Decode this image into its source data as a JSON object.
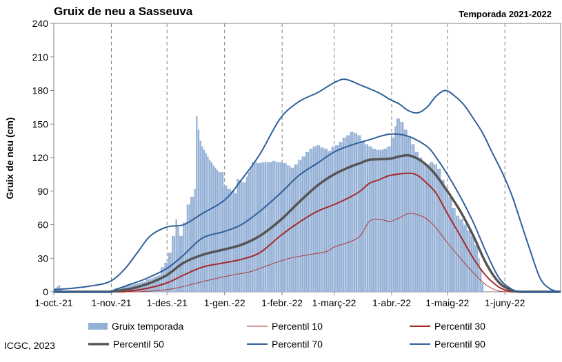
{
  "header": {
    "title": "Gruix de neu a Sasseuva",
    "season": "Temporada 2021-2022",
    "credit": "ICGC, 2023"
  },
  "chart_data": {
    "type": "bar",
    "ylabel": "Gruix de neu (cm)",
    "xlabel": "",
    "ylim": [
      0,
      240
    ],
    "yticks": [
      0,
      30,
      60,
      90,
      120,
      150,
      180,
      210,
      240
    ],
    "xrange": [
      "2021-10-01",
      "2022-07-01"
    ],
    "xticks": [
      {
        "date": "2021-10-01",
        "label": "1-oct.-21"
      },
      {
        "date": "2021-11-01",
        "label": "1-nov.-21"
      },
      {
        "date": "2021-12-01",
        "label": "1-des.-21"
      },
      {
        "date": "2022-01-01",
        "label": "1-gen.-22"
      },
      {
        "date": "2022-02-01",
        "label": "1-febr.-22"
      },
      {
        "date": "2022-03-01",
        "label": "1-març-22"
      },
      {
        "date": "2022-04-01",
        "label": "1-abr.-22"
      },
      {
        "date": "2022-05-01",
        "label": "1-maig-22"
      },
      {
        "date": "2022-06-01",
        "label": "1-juny-22"
      }
    ],
    "grid": "vertical dashed at month starts",
    "legend_position": "bottom",
    "colors": {
      "bars": "#94b0d6",
      "p10": "#b03a3a",
      "p30": "#a52a2a",
      "p50": "#555555",
      "p70": "#2f5f9a",
      "p90": "#2f5f9a"
    },
    "bar_series": {
      "name": "Gruix temporada",
      "points": [
        [
          "2021-10-01",
          2
        ],
        [
          "2021-10-04",
          6
        ],
        [
          "2021-10-05",
          2
        ],
        [
          "2021-10-06",
          0
        ],
        [
          "2021-11-02",
          0
        ],
        [
          "2021-11-03",
          3
        ],
        [
          "2021-11-06",
          4
        ],
        [
          "2021-11-08",
          5
        ],
        [
          "2021-11-10",
          6
        ],
        [
          "2021-11-14",
          7
        ],
        [
          "2021-11-18",
          9
        ],
        [
          "2021-11-20",
          11
        ],
        [
          "2021-11-22",
          12
        ],
        [
          "2021-11-24",
          13
        ],
        [
          "2021-11-27",
          15
        ],
        [
          "2021-11-28",
          22
        ],
        [
          "2021-11-30",
          26
        ],
        [
          "2021-12-02",
          35
        ],
        [
          "2021-12-04",
          50
        ],
        [
          "2021-12-06",
          65
        ],
        [
          "2021-12-07",
          58
        ],
        [
          "2021-12-08",
          50
        ],
        [
          "2021-12-10",
          62
        ],
        [
          "2021-12-12",
          78
        ],
        [
          "2021-12-14",
          85
        ],
        [
          "2021-12-16",
          92
        ],
        [
          "2021-12-17",
          157
        ],
        [
          "2021-12-18",
          145
        ],
        [
          "2021-12-19",
          135
        ],
        [
          "2021-12-20",
          130
        ],
        [
          "2021-12-21",
          127
        ],
        [
          "2021-12-22",
          124
        ],
        [
          "2021-12-23",
          121
        ],
        [
          "2021-12-24",
          118
        ],
        [
          "2021-12-25",
          116
        ],
        [
          "2021-12-26",
          113
        ],
        [
          "2021-12-27",
          111
        ],
        [
          "2021-12-28",
          109
        ],
        [
          "2021-12-29",
          107
        ],
        [
          "2021-12-30",
          107
        ],
        [
          "2021-12-31",
          107
        ],
        [
          "2022-01-01",
          95
        ],
        [
          "2022-01-03",
          92
        ],
        [
          "2022-01-05",
          90
        ],
        [
          "2022-01-07",
          88
        ],
        [
          "2022-01-08",
          101
        ],
        [
          "2022-01-09",
          100
        ],
        [
          "2022-01-10",
          99
        ],
        [
          "2022-01-11",
          98
        ],
        [
          "2022-01-12",
          98
        ],
        [
          "2022-01-13",
          103
        ],
        [
          "2022-01-14",
          107
        ],
        [
          "2022-01-15",
          112
        ],
        [
          "2022-01-16",
          116
        ],
        [
          "2022-01-17",
          116
        ],
        [
          "2022-01-19",
          115
        ],
        [
          "2022-01-21",
          116
        ],
        [
          "2022-01-23",
          116
        ],
        [
          "2022-01-25",
          116
        ],
        [
          "2022-01-27",
          117
        ],
        [
          "2022-01-29",
          116
        ],
        [
          "2022-01-31",
          116
        ],
        [
          "2022-02-02",
          115
        ],
        [
          "2022-02-04",
          113
        ],
        [
          "2022-02-06",
          111
        ],
        [
          "2022-02-08",
          114
        ],
        [
          "2022-02-10",
          118
        ],
        [
          "2022-02-12",
          121
        ],
        [
          "2022-02-14",
          125
        ],
        [
          "2022-02-16",
          128
        ],
        [
          "2022-02-18",
          130
        ],
        [
          "2022-02-20",
          131
        ],
        [
          "2022-02-22",
          129
        ],
        [
          "2022-02-24",
          128
        ],
        [
          "2022-02-26",
          126
        ],
        [
          "2022-02-28",
          130
        ],
        [
          "2022-03-02",
          131
        ],
        [
          "2022-03-04",
          134
        ],
        [
          "2022-03-06",
          138
        ],
        [
          "2022-03-08",
          140
        ],
        [
          "2022-03-10",
          143
        ],
        [
          "2022-03-12",
          142
        ],
        [
          "2022-03-14",
          140
        ],
        [
          "2022-03-16",
          135
        ],
        [
          "2022-03-18",
          132
        ],
        [
          "2022-03-20",
          130
        ],
        [
          "2022-03-22",
          128
        ],
        [
          "2022-03-24",
          127
        ],
        [
          "2022-03-26",
          127
        ],
        [
          "2022-03-28",
          128
        ],
        [
          "2022-03-30",
          130
        ],
        [
          "2022-04-01",
          138
        ],
        [
          "2022-04-03",
          148
        ],
        [
          "2022-04-04",
          155
        ],
        [
          "2022-04-06",
          152
        ],
        [
          "2022-04-08",
          145
        ],
        [
          "2022-04-10",
          138
        ],
        [
          "2022-04-12",
          132
        ],
        [
          "2022-04-14",
          125
        ],
        [
          "2022-04-16",
          120
        ],
        [
          "2022-04-18",
          116
        ],
        [
          "2022-04-20",
          114
        ],
        [
          "2022-04-22",
          116
        ],
        [
          "2022-04-24",
          114
        ],
        [
          "2022-04-26",
          110
        ],
        [
          "2022-04-28",
          100
        ],
        [
          "2022-04-30",
          92
        ],
        [
          "2022-05-02",
          85
        ],
        [
          "2022-05-04",
          75
        ],
        [
          "2022-05-06",
          68
        ],
        [
          "2022-05-08",
          65
        ],
        [
          "2022-05-10",
          60
        ],
        [
          "2022-05-12",
          55
        ],
        [
          "2022-05-14",
          50
        ],
        [
          "2022-05-16",
          42
        ],
        [
          "2022-05-18",
          30
        ],
        [
          "2022-05-19",
          20
        ],
        [
          "2022-05-20",
          8
        ],
        [
          "2022-05-21",
          0
        ]
      ]
    },
    "series": [
      {
        "name": "Percentil 10",
        "key": "p10",
        "width": 1,
        "points": [
          [
            "2021-11-15",
            0
          ],
          [
            "2021-11-25",
            1
          ],
          [
            "2021-12-05",
            3
          ],
          [
            "2021-12-15",
            7
          ],
          [
            "2021-12-25",
            11
          ],
          [
            "2022-01-05",
            15
          ],
          [
            "2022-01-15",
            18
          ],
          [
            "2022-01-25",
            24
          ],
          [
            "2022-02-05",
            30
          ],
          [
            "2022-02-15",
            33
          ],
          [
            "2022-02-25",
            36
          ],
          [
            "2022-03-01",
            40
          ],
          [
            "2022-03-10",
            45
          ],
          [
            "2022-03-15",
            50
          ],
          [
            "2022-03-20",
            63
          ],
          [
            "2022-03-25",
            65
          ],
          [
            "2022-03-31",
            63
          ],
          [
            "2022-04-05",
            66
          ],
          [
            "2022-04-10",
            70
          ],
          [
            "2022-04-15",
            69
          ],
          [
            "2022-04-20",
            65
          ],
          [
            "2022-04-25",
            57
          ],
          [
            "2022-05-01",
            44
          ],
          [
            "2022-05-08",
            30
          ],
          [
            "2022-05-15",
            17
          ],
          [
            "2022-05-22",
            6
          ],
          [
            "2022-05-28",
            1
          ],
          [
            "2022-06-02",
            0
          ]
        ]
      },
      {
        "name": "Percentil 30",
        "key": "p30",
        "width": 2,
        "points": [
          [
            "2021-11-08",
            0
          ],
          [
            "2021-11-20",
            3
          ],
          [
            "2021-12-01",
            8
          ],
          [
            "2021-12-10",
            15
          ],
          [
            "2021-12-20",
            22
          ],
          [
            "2022-01-01",
            26
          ],
          [
            "2022-01-10",
            29
          ],
          [
            "2022-01-20",
            35
          ],
          [
            "2022-01-31",
            50
          ],
          [
            "2022-02-10",
            62
          ],
          [
            "2022-02-20",
            72
          ],
          [
            "2022-03-01",
            78
          ],
          [
            "2022-03-10",
            85
          ],
          [
            "2022-03-15",
            90
          ],
          [
            "2022-03-20",
            97
          ],
          [
            "2022-03-25",
            100
          ],
          [
            "2022-03-31",
            104
          ],
          [
            "2022-04-10",
            106
          ],
          [
            "2022-04-15",
            104
          ],
          [
            "2022-04-20",
            97
          ],
          [
            "2022-04-25",
            88
          ],
          [
            "2022-05-01",
            70
          ],
          [
            "2022-05-08",
            50
          ],
          [
            "2022-05-15",
            30
          ],
          [
            "2022-05-22",
            14
          ],
          [
            "2022-05-29",
            4
          ],
          [
            "2022-06-04",
            0
          ]
        ]
      },
      {
        "name": "Percentil 50",
        "key": "p50",
        "width": 3.5,
        "points": [
          [
            "2021-11-01",
            0
          ],
          [
            "2021-11-12",
            3
          ],
          [
            "2021-11-22",
            8
          ],
          [
            "2021-12-01",
            15
          ],
          [
            "2021-12-10",
            26
          ],
          [
            "2021-12-20",
            33
          ],
          [
            "2022-01-01",
            38
          ],
          [
            "2022-01-10",
            42
          ],
          [
            "2022-01-20",
            50
          ],
          [
            "2022-01-31",
            64
          ],
          [
            "2022-02-10",
            80
          ],
          [
            "2022-02-20",
            95
          ],
          [
            "2022-03-01",
            105
          ],
          [
            "2022-03-10",
            112
          ],
          [
            "2022-03-15",
            115
          ],
          [
            "2022-03-20",
            118
          ],
          [
            "2022-03-31",
            119
          ],
          [
            "2022-04-05",
            121
          ],
          [
            "2022-04-10",
            122
          ],
          [
            "2022-04-15",
            119
          ],
          [
            "2022-04-20",
            113
          ],
          [
            "2022-04-25",
            104
          ],
          [
            "2022-05-01",
            90
          ],
          [
            "2022-05-08",
            72
          ],
          [
            "2022-05-15",
            50
          ],
          [
            "2022-05-22",
            25
          ],
          [
            "2022-05-29",
            8
          ],
          [
            "2022-06-05",
            1
          ],
          [
            "2022-06-09",
            0
          ]
        ]
      },
      {
        "name": "Percentil 70",
        "key": "p70",
        "width": 2,
        "points": [
          [
            "2021-10-31",
            0
          ],
          [
            "2021-11-10",
            6
          ],
          [
            "2021-11-20",
            12
          ],
          [
            "2021-12-01",
            21
          ],
          [
            "2021-12-10",
            33
          ],
          [
            "2021-12-20",
            48
          ],
          [
            "2022-01-01",
            54
          ],
          [
            "2022-01-10",
            60
          ],
          [
            "2022-01-20",
            72
          ],
          [
            "2022-01-31",
            88
          ],
          [
            "2022-02-10",
            104
          ],
          [
            "2022-02-20",
            115
          ],
          [
            "2022-03-01",
            125
          ],
          [
            "2022-03-10",
            131
          ],
          [
            "2022-03-20",
            136
          ],
          [
            "2022-03-31",
            141
          ],
          [
            "2022-04-10",
            139
          ],
          [
            "2022-04-20",
            130
          ],
          [
            "2022-04-25",
            120
          ],
          [
            "2022-05-01",
            105
          ],
          [
            "2022-05-08",
            85
          ],
          [
            "2022-05-15",
            62
          ],
          [
            "2022-05-22",
            35
          ],
          [
            "2022-05-29",
            12
          ],
          [
            "2022-06-05",
            2
          ],
          [
            "2022-06-10",
            0
          ]
        ]
      },
      {
        "name": "Percentil 90",
        "key": "p90",
        "width": 2,
        "points": [
          [
            "2021-10-01",
            2
          ],
          [
            "2021-10-10",
            3
          ],
          [
            "2021-10-20",
            5
          ],
          [
            "2021-10-31",
            9
          ],
          [
            "2021-11-08",
            20
          ],
          [
            "2021-11-15",
            35
          ],
          [
            "2021-11-22",
            50
          ],
          [
            "2021-12-01",
            58
          ],
          [
            "2021-12-10",
            60
          ],
          [
            "2021-12-20",
            70
          ],
          [
            "2022-01-01",
            82
          ],
          [
            "2022-01-10",
            100
          ],
          [
            "2022-01-20",
            123
          ],
          [
            "2022-01-31",
            155
          ],
          [
            "2022-02-10",
            170
          ],
          [
            "2022-02-20",
            178
          ],
          [
            "2022-03-01",
            187
          ],
          [
            "2022-03-07",
            190
          ],
          [
            "2022-03-15",
            185
          ],
          [
            "2022-03-25",
            178
          ],
          [
            "2022-03-31",
            172
          ],
          [
            "2022-04-05",
            168
          ],
          [
            "2022-04-10",
            162
          ],
          [
            "2022-04-15",
            160
          ],
          [
            "2022-04-20",
            165
          ],
          [
            "2022-04-25",
            175
          ],
          [
            "2022-04-30",
            180
          ],
          [
            "2022-05-05",
            175
          ],
          [
            "2022-05-10",
            167
          ],
          [
            "2022-05-15",
            155
          ],
          [
            "2022-05-20",
            142
          ],
          [
            "2022-05-25",
            125
          ],
          [
            "2022-05-31",
            105
          ],
          [
            "2022-06-05",
            85
          ],
          [
            "2022-06-10",
            60
          ],
          [
            "2022-06-15",
            35
          ],
          [
            "2022-06-20",
            12
          ],
          [
            "2022-06-25",
            3
          ],
          [
            "2022-06-30",
            0
          ]
        ]
      }
    ],
    "legend": [
      {
        "key": "bars",
        "label": "Gruix temporada"
      },
      {
        "key": "p10",
        "label": "Percentil 10"
      },
      {
        "key": "p30",
        "label": "Percentil 30"
      },
      {
        "key": "p50",
        "label": "Percentil 50"
      },
      {
        "key": "p70",
        "label": "Percentil 70"
      },
      {
        "key": "p90",
        "label": "Percentil 90"
      }
    ]
  }
}
